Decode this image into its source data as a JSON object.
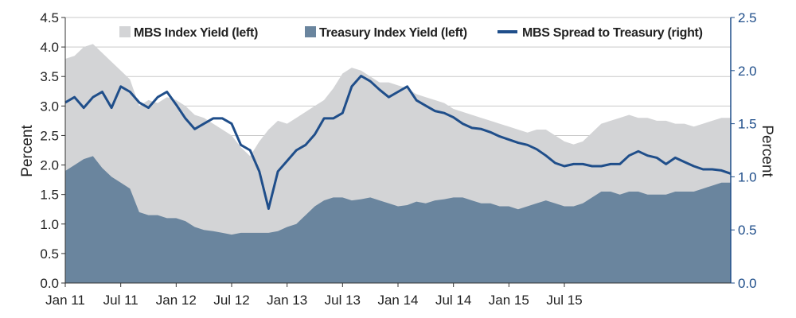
{
  "chart_data": {
    "type": "area",
    "title": "",
    "xlabel": "",
    "ylabel_left": "Percent",
    "ylabel_right": "Percent",
    "ylim_left": [
      0.0,
      4.5
    ],
    "ylim_right": [
      0.0,
      2.5
    ],
    "yticks_left": [
      "0.0",
      "0.5",
      "1.0",
      "1.5",
      "2.0",
      "2.5",
      "3.0",
      "3.5",
      "4.0",
      "4.5"
    ],
    "yticks_right": [
      "0.0",
      "0.5",
      "1.0",
      "1.5",
      "2.0",
      "2.5"
    ],
    "xticks": [
      "Jan 11",
      "Jul 11",
      "Jan 12",
      "Jul 12",
      "Jan 13",
      "Jul 13",
      "Jan 14",
      "Jul 14",
      "Jan 15",
      "Jul 15"
    ],
    "x_range_months": [
      0,
      72
    ],
    "grid": "horizontal",
    "legend_position": "top",
    "colors": {
      "mbs_yield": "#d3d4d6",
      "treasury_yield": "#6a859e",
      "spread": "#1f4e8a"
    },
    "series": [
      {
        "name": "MBS Index Yield (left)",
        "type": "area",
        "axis": "left",
        "x": [
          0,
          1,
          2,
          3,
          4,
          5,
          6,
          7,
          8,
          9,
          10,
          11,
          12,
          13,
          14,
          15,
          16,
          17,
          18,
          19,
          20,
          21,
          22,
          23,
          24,
          25,
          26,
          27,
          28,
          29,
          30,
          31,
          32,
          33,
          34,
          35,
          36,
          37,
          38,
          39,
          40,
          41,
          42,
          43,
          44,
          45,
          46,
          47,
          48,
          49,
          50,
          51,
          52,
          53,
          54,
          55,
          56,
          57,
          58,
          59,
          60,
          61,
          62,
          63,
          64,
          65,
          66,
          67,
          68,
          69,
          70,
          71,
          72
        ],
        "values": [
          3.8,
          3.85,
          4.0,
          4.05,
          3.9,
          3.75,
          3.6,
          3.45,
          3.0,
          3.1,
          3.05,
          3.15,
          3.1,
          3.0,
          2.85,
          2.8,
          2.7,
          2.6,
          2.5,
          2.3,
          2.15,
          2.4,
          2.6,
          2.75,
          2.7,
          2.8,
          2.9,
          3.0,
          3.1,
          3.3,
          3.55,
          3.65,
          3.6,
          3.5,
          3.4,
          3.4,
          3.35,
          3.3,
          3.2,
          3.15,
          3.1,
          3.05,
          2.95,
          2.9,
          2.85,
          2.8,
          2.75,
          2.7,
          2.65,
          2.6,
          2.55,
          2.6,
          2.6,
          2.5,
          2.4,
          2.35,
          2.4,
          2.55,
          2.7,
          2.75,
          2.8,
          2.85,
          2.8,
          2.8,
          2.75,
          2.75,
          2.7,
          2.7,
          2.65,
          2.7,
          2.75,
          2.8,
          2.8
        ]
      },
      {
        "name": "Treasury Index Yield (left)",
        "type": "area",
        "axis": "left",
        "x": [
          0,
          1,
          2,
          3,
          4,
          5,
          6,
          7,
          8,
          9,
          10,
          11,
          12,
          13,
          14,
          15,
          16,
          17,
          18,
          19,
          20,
          21,
          22,
          23,
          24,
          25,
          26,
          27,
          28,
          29,
          30,
          31,
          32,
          33,
          34,
          35,
          36,
          37,
          38,
          39,
          40,
          41,
          42,
          43,
          44,
          45,
          46,
          47,
          48,
          49,
          50,
          51,
          52,
          53,
          54,
          55,
          56,
          57,
          58,
          59,
          60,
          61,
          62,
          63,
          64,
          65,
          66,
          67,
          68,
          69,
          70,
          71,
          72
        ],
        "values": [
          1.9,
          2.0,
          2.1,
          2.15,
          1.95,
          1.8,
          1.7,
          1.6,
          1.2,
          1.15,
          1.15,
          1.1,
          1.1,
          1.05,
          0.95,
          0.9,
          0.88,
          0.85,
          0.82,
          0.85,
          0.85,
          0.85,
          0.85,
          0.88,
          0.95,
          1.0,
          1.15,
          1.3,
          1.4,
          1.45,
          1.45,
          1.4,
          1.42,
          1.45,
          1.4,
          1.35,
          1.3,
          1.32,
          1.38,
          1.35,
          1.4,
          1.42,
          1.45,
          1.45,
          1.4,
          1.35,
          1.35,
          1.3,
          1.3,
          1.25,
          1.3,
          1.35,
          1.4,
          1.35,
          1.3,
          1.3,
          1.35,
          1.45,
          1.55,
          1.55,
          1.5,
          1.55,
          1.55,
          1.5,
          1.5,
          1.5,
          1.55,
          1.55,
          1.55,
          1.6,
          1.65,
          1.7,
          1.7
        ]
      },
      {
        "name": "MBS Spread to Treasury (right)",
        "type": "line",
        "axis": "right",
        "x": [
          0,
          1,
          2,
          3,
          4,
          5,
          6,
          7,
          8,
          9,
          10,
          11,
          12,
          13,
          14,
          15,
          16,
          17,
          18,
          19,
          20,
          21,
          22,
          23,
          24,
          25,
          26,
          27,
          28,
          29,
          30,
          31,
          32,
          33,
          34,
          35,
          36,
          37,
          38,
          39,
          40,
          41,
          42,
          43,
          44,
          45,
          46,
          47,
          48,
          49,
          50,
          51,
          52,
          53,
          54,
          55,
          56,
          57,
          58,
          59,
          60,
          61,
          62,
          63,
          64,
          65,
          66,
          67,
          68,
          69,
          70,
          71,
          72
        ],
        "values": [
          1.7,
          1.75,
          1.65,
          1.75,
          1.8,
          1.65,
          1.85,
          1.8,
          1.7,
          1.65,
          1.75,
          1.8,
          1.68,
          1.55,
          1.45,
          1.5,
          1.55,
          1.55,
          1.5,
          1.3,
          1.25,
          1.05,
          0.7,
          1.05,
          1.15,
          1.25,
          1.3,
          1.4,
          1.55,
          1.55,
          1.6,
          1.85,
          1.95,
          1.9,
          1.82,
          1.75,
          1.8,
          1.85,
          1.72,
          1.67,
          1.62,
          1.6,
          1.56,
          1.5,
          1.46,
          1.45,
          1.42,
          1.38,
          1.35,
          1.32,
          1.3,
          1.26,
          1.2,
          1.13,
          1.1,
          1.12,
          1.12,
          1.1,
          1.1,
          1.12,
          1.12,
          1.2,
          1.24,
          1.2,
          1.18,
          1.12,
          1.18,
          1.14,
          1.1,
          1.07,
          1.07,
          1.06,
          1.03
        ]
      }
    ]
  }
}
